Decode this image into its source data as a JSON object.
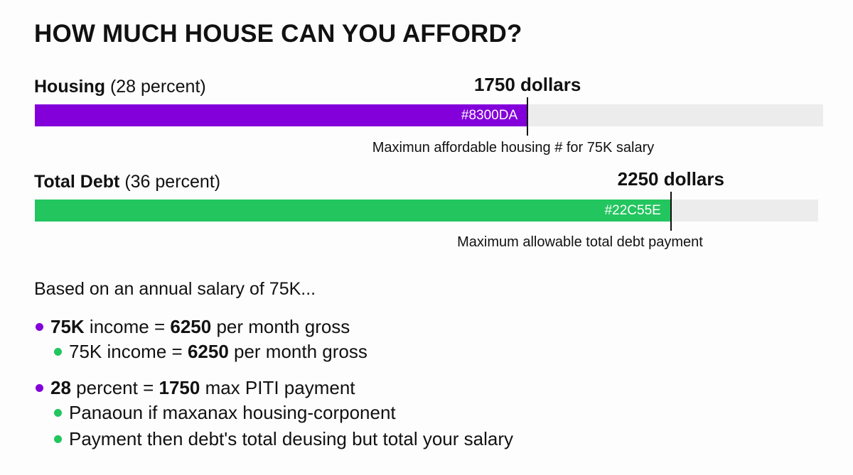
{
  "title": "HOW MUCH HOUSE CAN YOU AFFORD?",
  "colors": {
    "housing": "#8300DA",
    "debt": "#22C55E",
    "track": "#ECECEC",
    "text": "#111111"
  },
  "chart_data": {
    "type": "bar",
    "orientation": "horizontal",
    "bars": [
      {
        "label_bold": "Housing",
        "label_rest": " (28 percent)",
        "value_label": "1750 dollars",
        "value": 1750,
        "fill_fraction": 0.625,
        "color_code": "#8300DA",
        "color": "#8300DA",
        "note": "Maximun affordable housing # for 75K salary"
      },
      {
        "label_bold": "Total Debt",
        "label_rest": " (36 percent)",
        "value_label": "2250 dollars",
        "value": 2250,
        "fill_fraction": 0.812,
        "color_code": "#22C55E",
        "color": "#22C55E",
        "note": "Maximum allowable total debt payment"
      }
    ]
  },
  "intro": "Based on an annual salary of 75K...",
  "bullets": [
    {
      "level": 1,
      "dot": "#8300DA",
      "segments": [
        {
          "t": "75K",
          "b": true
        },
        {
          "t": " income = ",
          "b": false
        },
        {
          "t": "6250",
          "b": true
        },
        {
          "t": " per month gross",
          "b": false
        }
      ]
    },
    {
      "level": 2,
      "dot": "#22C55E",
      "segments": [
        {
          "t": "75K",
          "b": false
        },
        {
          "t": " income = ",
          "b": false
        },
        {
          "t": "6250",
          "b": true
        },
        {
          "t": " per month gross",
          "b": false
        }
      ]
    },
    {
      "level": 1,
      "dot": "#8300DA",
      "segments": [
        {
          "t": "28",
          "b": true
        },
        {
          "t": " percent = ",
          "b": false
        },
        {
          "t": "1750",
          "b": true
        },
        {
          "t": " max PITI payment",
          "b": false
        }
      ]
    },
    {
      "level": 2,
      "dot": "#22C55E",
      "segments": [
        {
          "t": "Panaoun if maxanax housing-corponent",
          "b": false
        }
      ]
    },
    {
      "level": 2,
      "dot": "#22C55E",
      "segments": [
        {
          "t": "Payment then debt's total deusing but total your salary",
          "b": false
        }
      ]
    }
  ]
}
